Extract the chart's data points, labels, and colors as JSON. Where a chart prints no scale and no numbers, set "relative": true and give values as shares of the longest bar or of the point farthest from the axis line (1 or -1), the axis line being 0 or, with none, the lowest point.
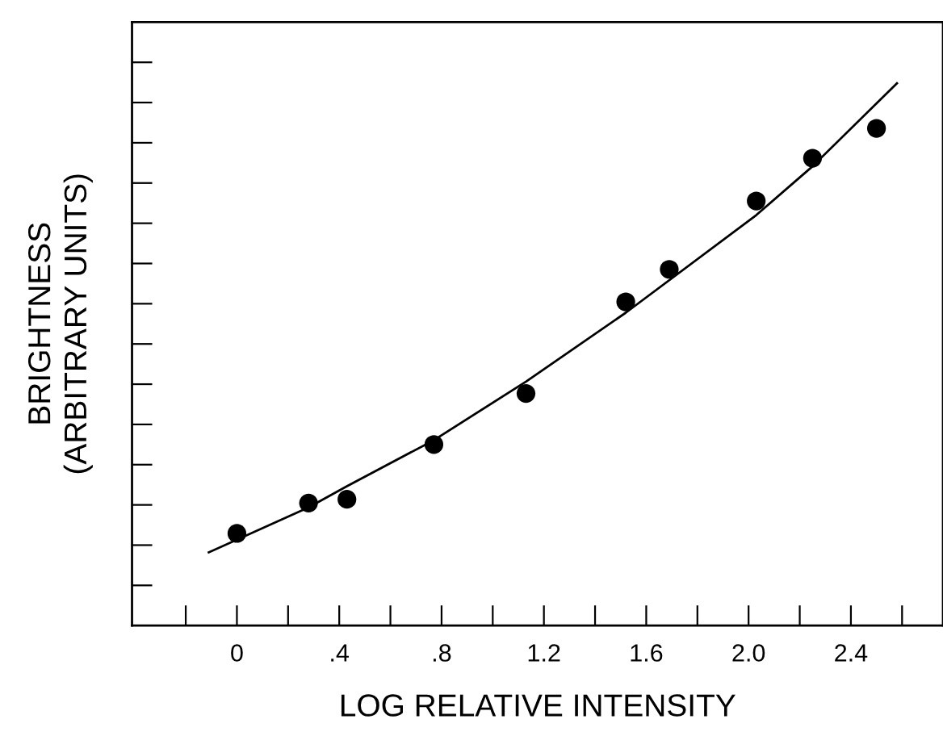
{
  "chart_data": {
    "type": "scatter",
    "xlabel": "LOG RELATIVE INTENSITY",
    "ylabel": "BRIGHTNESS\n(ARBITRARY UNITS)",
    "relative": true,
    "xlim": [
      -0.41,
      2.76
    ],
    "xticks": [
      {
        "value": -0.2,
        "label": null
      },
      0,
      {
        "value": 0.2,
        "label": null
      },
      {
        "value": 0.4,
        "label": ".4"
      },
      {
        "value": 0.6,
        "label": null
      },
      {
        "value": 0.8,
        "label": ".8"
      },
      {
        "value": 1.0,
        "label": null
      },
      1.2,
      {
        "value": 1.4,
        "label": null
      },
      1.6,
      {
        "value": 1.8,
        "label": null
      },
      {
        "value": 2.0,
        "label": "2.0"
      },
      {
        "value": 2.2,
        "label": null
      },
      2.4,
      {
        "value": 2.6,
        "label": null
      }
    ],
    "grid": false,
    "legend": false,
    "series": [
      {
        "color": "#000000",
        "marker": "circle",
        "x": [
          0.0,
          0.28,
          0.43,
          0.77,
          1.13,
          1.52,
          1.69,
          2.03,
          2.25,
          2.5
        ],
        "values": [
          0.17,
          0.226,
          0.233,
          0.334,
          0.428,
          0.597,
          0.657,
          0.783,
          0.862,
          0.917
        ]
      },
      {
        "type": "line",
        "color": "#000000",
        "line_style": "solid",
        "x": [
          -0.11,
          0.28,
          0.43,
          0.77,
          1.13,
          1.52,
          2.03,
          2.25,
          2.58
        ],
        "values": [
          0.135,
          0.218,
          0.257,
          0.342,
          0.45,
          0.577,
          0.757,
          0.847,
          1.0
        ]
      }
    ]
  }
}
